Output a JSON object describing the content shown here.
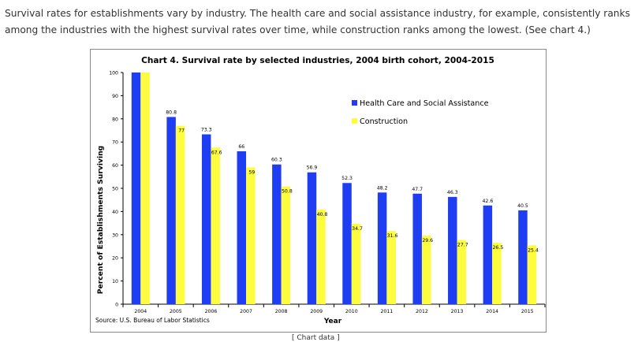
{
  "intro_text": "Survival rates for establishments vary by industry. The health care and social assistance industry, for example, consistently ranks among the industries with the highest survival rates over time, while construction ranks among the lowest. (See chart 4.)",
  "footer_link": "[ Chart data ]",
  "colors": {
    "health": "#1f3df2",
    "construction": "#fdfc3f",
    "axis": "#000000"
  },
  "chart_data": {
    "type": "bar",
    "title": "Chart 4. Survival rate by selected industries, 2004 birth cohort, 2004-2015",
    "xlabel": "Year",
    "ylabel": "Percent of Establishments Surviving",
    "ylim": [
      0,
      100
    ],
    "yticks": [
      0,
      10,
      20,
      30,
      40,
      50,
      60,
      70,
      80,
      90,
      100
    ],
    "categories": [
      "2004",
      "2005",
      "2006",
      "2007",
      "2008",
      "2009",
      "2010",
      "2011",
      "2012",
      "2013",
      "2014",
      "2015"
    ],
    "series": [
      {
        "name": "Health Care and Social Assistance",
        "values": [
          100,
          80.8,
          73.3,
          66,
          60.3,
          56.9,
          52.3,
          48.2,
          47.7,
          46.3,
          42.6,
          40.5
        ],
        "labels": [
          "",
          "80.8",
          "73.3",
          "66",
          "60.3",
          "56.9",
          "52.3",
          "48.2",
          "47.7",
          "46.3",
          "42.6",
          "40.5"
        ]
      },
      {
        "name": "Construction",
        "values": [
          100,
          77,
          67.6,
          59,
          50.8,
          40.8,
          34.7,
          31.6,
          29.6,
          27.7,
          26.5,
          25.4
        ],
        "labels": [
          "",
          "77",
          "67.6",
          "59",
          "50.8",
          "40.8",
          "34.7",
          "31.6",
          "29.6",
          "27.7",
          "26.5",
          "25.4"
        ]
      }
    ],
    "legend_position": "right",
    "grid": false,
    "source": "Source: U.S. Bureau of Labor Statistics"
  }
}
